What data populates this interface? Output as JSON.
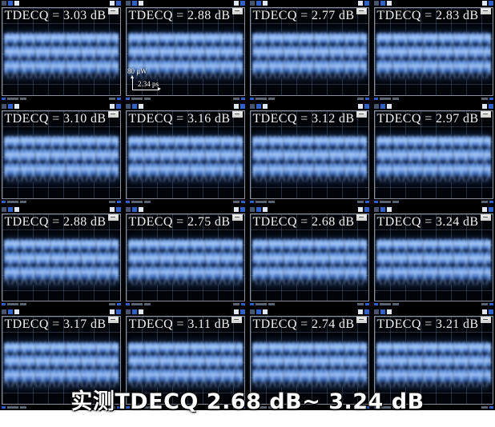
{
  "caption": "实测TDECQ 2.68 dB~ 3.24 dB",
  "annotation": {
    "power_scale": "80 μW",
    "time_scale": "2.34 ps"
  },
  "panels": [
    {
      "label": "TDECQ = 3.03 dB"
    },
    {
      "label": "TDECQ = 2.88 dB"
    },
    {
      "label": "TDECQ = 2.77 dB"
    },
    {
      "label": "TDECQ = 2.83 dB"
    },
    {
      "label": "TDECQ = 3.10 dB"
    },
    {
      "label": "TDECQ = 3.16 dB"
    },
    {
      "label": "TDECQ = 3.12 dB"
    },
    {
      "label": "TDECQ = 2.97 dB"
    },
    {
      "label": "TDECQ = 2.88 dB"
    },
    {
      "label": "TDECQ = 2.75 dB"
    },
    {
      "label": "TDECQ = 2.68 dB"
    },
    {
      "label": "TDECQ = 3.24 dB"
    },
    {
      "label": "TDECQ = 3.17 dB"
    },
    {
      "label": "TDECQ = 3.11 dB"
    },
    {
      "label": "TDECQ = 2.74 dB"
    },
    {
      "label": "TDECQ = 3.21 dB"
    }
  ],
  "colors": {
    "eye_bright": "#a7c8f4",
    "eye_mid": "#4e7fd2",
    "eye_dark": "#122449",
    "grid_line": "#2b3a4d",
    "frame": "#8a919c",
    "caption_color": "#ffffff",
    "background": "#000000"
  },
  "chart_data": {
    "type": "heatmap",
    "title": "实测TDECQ 2.68 dB~ 3.24 dB",
    "metric": "TDECQ",
    "unit": "dB",
    "rows": 4,
    "cols": 4,
    "values": [
      [
        3.03,
        2.88,
        2.77,
        2.83
      ],
      [
        3.1,
        3.16,
        3.12,
        2.97
      ],
      [
        2.88,
        2.75,
        2.68,
        3.24
      ],
      [
        3.17,
        3.11,
        2.74,
        3.21
      ]
    ],
    "min": 2.68,
    "max": 3.24,
    "scale_annotation": {
      "vertical": "80 μW",
      "horizontal": "2.34 ps"
    },
    "layout_hints": {
      "grid": "on",
      "panel_type": "PAM4 eye diagram",
      "legend": "none"
    }
  }
}
